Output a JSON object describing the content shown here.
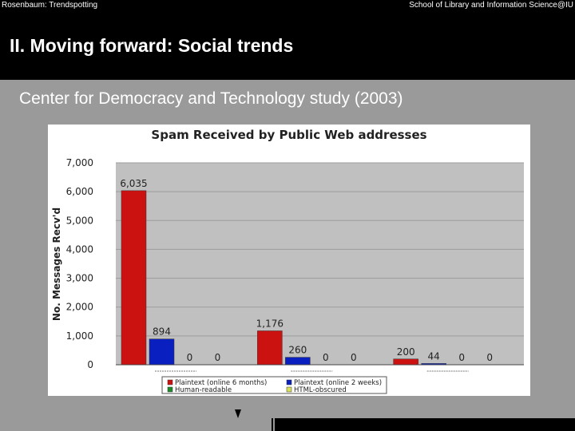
{
  "header": {
    "left_text": "Rosenbaum: Trendspotting",
    "right_text": "School of Library and Information Science@IU",
    "title": "II.  Moving forward: Social trends"
  },
  "subtitle": "Center for Democracy and Technology study (2003)",
  "colors": {
    "plaintext_6mo": "#cc1111",
    "plaintext_2wk": "#0a1fbf",
    "human_readable": "#1f8a2a",
    "html_obscured": "#d8e05a",
    "plot_bg": "#c0c0c0"
  },
  "chart_data": {
    "type": "bar",
    "title": "Spam Received by Public Web addresses",
    "ylabel": "No. Messages Recv'd",
    "xlabel": "",
    "ylim": [
      0,
      7000
    ],
    "yticks": [
      0,
      1000,
      2000,
      3000,
      4000,
      5000,
      6000,
      7000
    ],
    "ytick_labels": [
      "0",
      "1,000",
      "2,000",
      "3,000",
      "4,000",
      "5,000",
      "6,000",
      "7,000"
    ],
    "categories": [
      "",
      "",
      ""
    ],
    "series": [
      {
        "name": "Plaintext (online 6 months)",
        "values": [
          6035,
          1176,
          200
        ],
        "labels": [
          "6,035",
          "1,176",
          "200"
        ]
      },
      {
        "name": "Plaintext (online 2 weeks)",
        "values": [
          894,
          260,
          44
        ],
        "labels": [
          "894",
          "260",
          "44"
        ]
      },
      {
        "name": "Human-readable",
        "values": [
          0,
          0,
          0
        ],
        "labels": [
          "0",
          "0",
          "0"
        ]
      },
      {
        "name": "HTML-obscured",
        "values": [
          0,
          0,
          0
        ],
        "labels": [
          "0",
          "0",
          "0"
        ]
      }
    ],
    "legend_position": "bottom"
  }
}
